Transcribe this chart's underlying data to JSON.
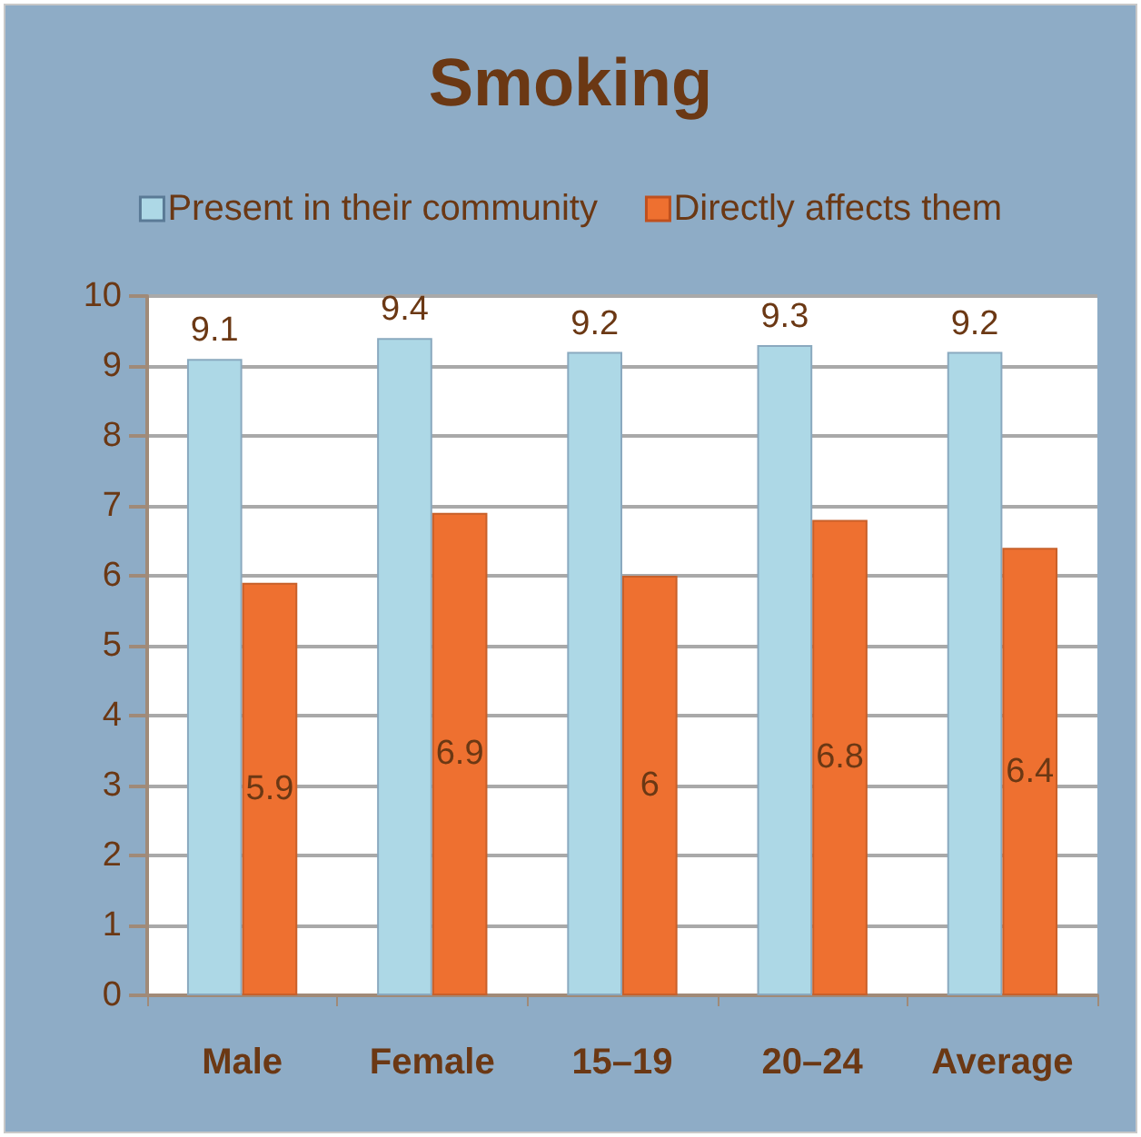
{
  "chart_data": {
    "type": "bar",
    "title": "Smoking",
    "categories": [
      "Male",
      "Female",
      "15–19",
      "20–24",
      "Average"
    ],
    "series": [
      {
        "name": "Present in their community",
        "color": "#add8e6",
        "values": [
          9.1,
          9.4,
          9.2,
          9.3,
          9.2
        ]
      },
      {
        "name": "Directly affects them",
        "color": "#ee7030",
        "values": [
          5.9,
          6.9,
          6,
          6.8,
          6.4
        ]
      }
    ],
    "ylim": [
      0,
      10
    ],
    "yticks": [
      0,
      1,
      2,
      3,
      4,
      5,
      6,
      7,
      8,
      9,
      10
    ],
    "grid": "y",
    "legend": "top",
    "data_labels": true
  }
}
